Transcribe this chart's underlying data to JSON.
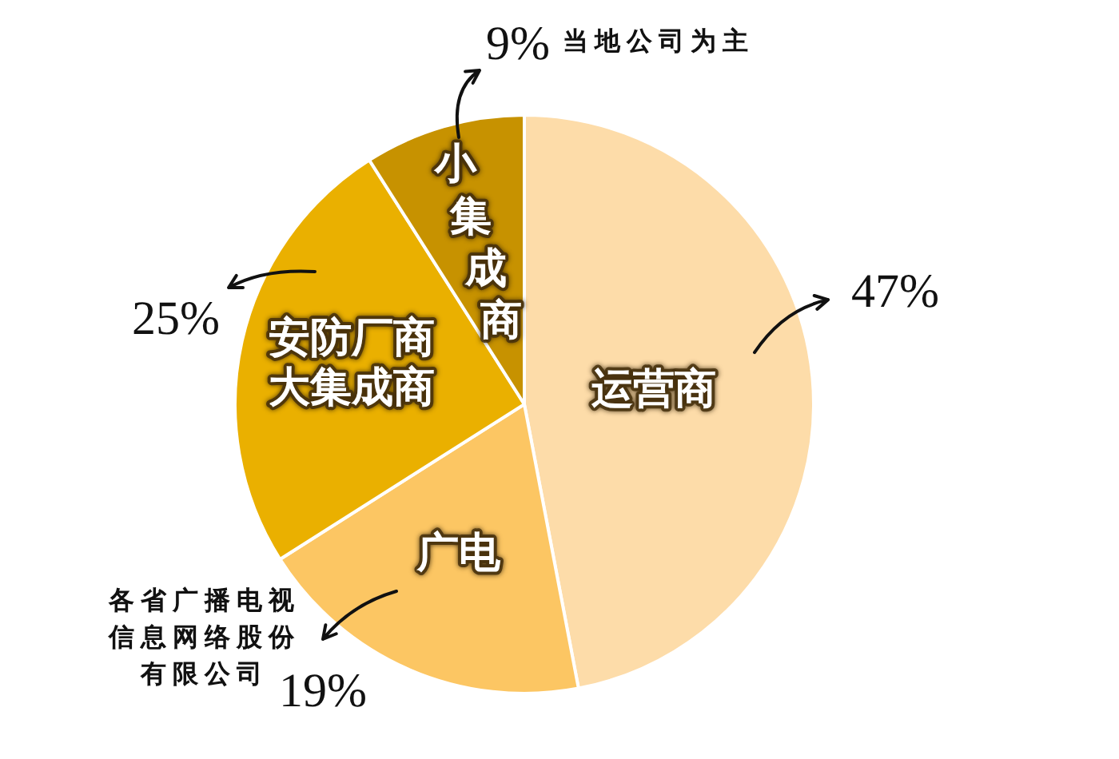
{
  "chart_data": {
    "type": "pie",
    "categories": [
      "运营商",
      "广电",
      "安防厂商大集成商",
      "小集成商"
    ],
    "values": [
      47,
      19,
      25,
      9
    ],
    "colors": [
      "#fddca9",
      "#fcc663",
      "#eab000",
      "#c79200"
    ],
    "value_labels": [
      "47%",
      "19%",
      "25%",
      "9%"
    ],
    "annotations": [
      "当地公司为主",
      "各省广播电视信息网络股份有限公司"
    ]
  }
}
